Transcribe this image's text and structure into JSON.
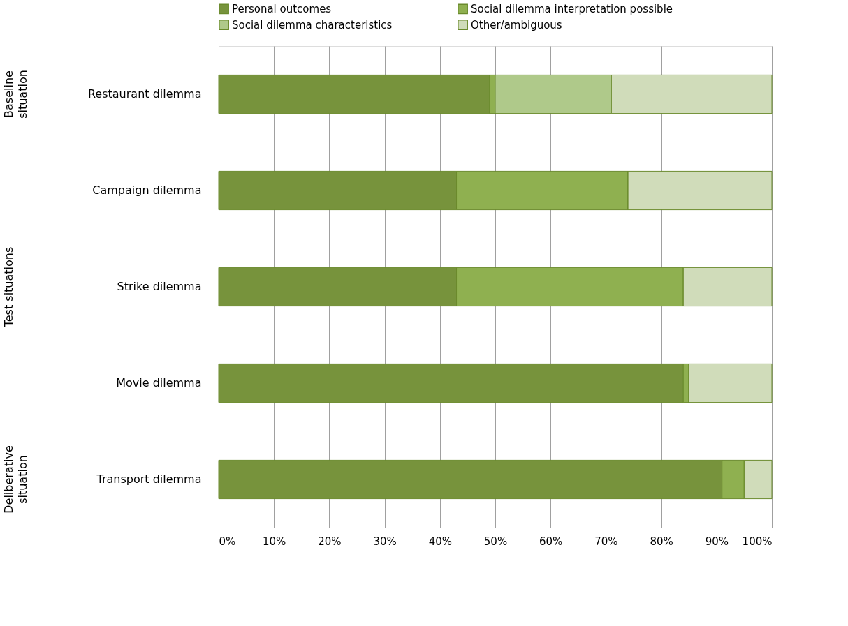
{
  "chart_data": {
    "type": "bar",
    "orientation": "horizontal",
    "stacked": true,
    "categories": [
      "Restaurant dilemma",
      "Campaign dilemma",
      "Strike dilemma",
      "Movie dilemma",
      "Transport dilemma"
    ],
    "series": [
      {
        "name": "Personal outcomes",
        "color": "#77933c",
        "values": [
          49,
          43,
          43,
          84,
          91
        ]
      },
      {
        "name": "Social dilemma interpretation possible",
        "color": "#8fb050",
        "values": [
          1,
          31,
          41,
          1,
          4
        ]
      },
      {
        "name": "Social dilemma characteristics",
        "color": "#afc98a",
        "values": [
          21,
          0,
          0,
          0,
          0
        ]
      },
      {
        "name": "Other/ambiguous",
        "color": "#d0dcba",
        "values": [
          29,
          26,
          16,
          15,
          5
        ]
      }
    ],
    "xlim": [
      0,
      100
    ],
    "xticks": [
      {
        "value": 0,
        "label": "0%"
      },
      {
        "value": 10,
        "label": "10%"
      },
      {
        "value": 20,
        "label": "20%"
      },
      {
        "value": 30,
        "label": "30%"
      },
      {
        "value": 40,
        "label": "40%"
      },
      {
        "value": 50,
        "label": "50%"
      },
      {
        "value": 60,
        "label": "60%"
      },
      {
        "value": 70,
        "label": "70%"
      },
      {
        "value": 80,
        "label": "80%"
      },
      {
        "value": 90,
        "label": "90%"
      },
      {
        "value": 100,
        "label": "100%"
      }
    ],
    "grid": "x",
    "legend": "top",
    "annotations": [
      "Baseline situation",
      "Test situations",
      "Deliberative situation"
    ]
  }
}
